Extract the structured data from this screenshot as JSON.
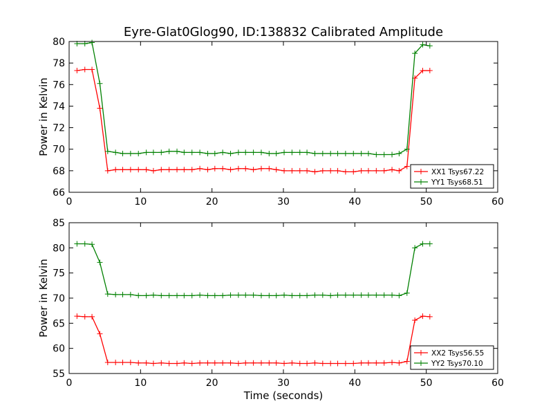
{
  "chart_data": [
    {
      "type": "line",
      "title": "Eyre-Glat0Glog90, ID:138832 Calibrated Amplitude",
      "xlabel": "",
      "ylabel": "Power in Kelvin",
      "xlim": [
        0,
        60
      ],
      "ylim": [
        66,
        80
      ],
      "xticks": [
        0,
        10,
        20,
        30,
        40,
        50,
        60
      ],
      "yticks": [
        66,
        68,
        70,
        72,
        74,
        76,
        78,
        80
      ],
      "legend_position": "lower-right",
      "x": [
        1.1,
        2.2,
        3.2,
        4.3,
        5.4,
        6.5,
        7.5,
        8.6,
        9.7,
        10.8,
        11.8,
        12.9,
        14.0,
        15.1,
        16.1,
        17.2,
        18.3,
        19.4,
        20.4,
        21.5,
        22.6,
        23.7,
        24.7,
        25.8,
        26.9,
        28.0,
        29.0,
        30.1,
        31.2,
        32.3,
        33.3,
        34.4,
        35.5,
        36.6,
        37.6,
        38.7,
        39.8,
        40.9,
        41.9,
        43.0,
        44.1,
        45.2,
        46.2,
        47.3,
        48.4,
        49.5,
        50.5
      ],
      "series": [
        {
          "name": "XX1 Tsys67.22",
          "color": "#ff0000",
          "values": [
            77.3,
            77.4,
            77.4,
            73.8,
            68.0,
            68.1,
            68.1,
            68.1,
            68.1,
            68.1,
            68.0,
            68.1,
            68.1,
            68.1,
            68.1,
            68.1,
            68.2,
            68.1,
            68.2,
            68.2,
            68.1,
            68.2,
            68.2,
            68.1,
            68.2,
            68.2,
            68.1,
            68.0,
            68.0,
            68.0,
            68.0,
            67.9,
            68.0,
            68.0,
            68.0,
            67.9,
            67.9,
            68.0,
            68.0,
            68.0,
            68.0,
            68.1,
            68.0,
            68.4,
            76.6,
            77.3,
            77.3
          ]
        },
        {
          "name": "YY1 Tsys68.51",
          "color": "#008000",
          "values": [
            79.8,
            79.8,
            79.9,
            76.1,
            69.8,
            69.7,
            69.6,
            69.6,
            69.6,
            69.7,
            69.7,
            69.7,
            69.8,
            69.8,
            69.7,
            69.7,
            69.7,
            69.6,
            69.6,
            69.7,
            69.6,
            69.7,
            69.7,
            69.7,
            69.7,
            69.6,
            69.6,
            69.7,
            69.7,
            69.7,
            69.7,
            69.6,
            69.6,
            69.6,
            69.6,
            69.6,
            69.6,
            69.6,
            69.6,
            69.5,
            69.5,
            69.5,
            69.6,
            70.0,
            78.9,
            79.7,
            79.6
          ]
        }
      ]
    },
    {
      "type": "line",
      "title": "",
      "xlabel": "Time (seconds)",
      "ylabel": "Power in Kelvin",
      "xlim": [
        0,
        60
      ],
      "ylim": [
        55,
        85
      ],
      "xticks": [
        0,
        10,
        20,
        30,
        40,
        50,
        60
      ],
      "yticks": [
        55,
        60,
        65,
        70,
        75,
        80,
        85
      ],
      "legend_position": "lower-right",
      "x": [
        1.1,
        2.2,
        3.2,
        4.3,
        5.4,
        6.5,
        7.5,
        8.6,
        9.7,
        10.8,
        11.8,
        12.9,
        14.0,
        15.1,
        16.1,
        17.2,
        18.3,
        19.4,
        20.4,
        21.5,
        22.6,
        23.7,
        24.7,
        25.8,
        26.9,
        28.0,
        29.0,
        30.1,
        31.2,
        32.3,
        33.3,
        34.4,
        35.5,
        36.6,
        37.6,
        38.7,
        39.8,
        40.9,
        41.9,
        43.0,
        44.1,
        45.2,
        46.2,
        47.3,
        48.4,
        49.5,
        50.5
      ],
      "series": [
        {
          "name": "XX2 Tsys56.55",
          "color": "#ff0000",
          "values": [
            66.4,
            66.3,
            66.3,
            62.9,
            57.2,
            57.2,
            57.2,
            57.2,
            57.1,
            57.1,
            57.0,
            57.1,
            57.0,
            57.0,
            57.1,
            57.0,
            57.1,
            57.1,
            57.1,
            57.1,
            57.1,
            57.0,
            57.1,
            57.1,
            57.1,
            57.1,
            57.1,
            57.0,
            57.1,
            57.0,
            57.0,
            57.1,
            57.0,
            57.0,
            57.0,
            57.0,
            57.0,
            57.1,
            57.1,
            57.1,
            57.1,
            57.2,
            57.1,
            57.4,
            65.6,
            66.4,
            66.3
          ]
        },
        {
          "name": "YY2 Tsys70.10",
          "color": "#008000",
          "values": [
            80.8,
            80.8,
            80.7,
            77.1,
            70.8,
            70.7,
            70.7,
            70.7,
            70.5,
            70.5,
            70.6,
            70.5,
            70.5,
            70.5,
            70.5,
            70.5,
            70.6,
            70.5,
            70.5,
            70.5,
            70.6,
            70.6,
            70.6,
            70.6,
            70.5,
            70.5,
            70.5,
            70.6,
            70.5,
            70.5,
            70.5,
            70.6,
            70.6,
            70.5,
            70.6,
            70.6,
            70.6,
            70.6,
            70.6,
            70.6,
            70.6,
            70.6,
            70.5,
            71.0,
            80.0,
            80.8,
            80.8
          ]
        }
      ]
    }
  ]
}
